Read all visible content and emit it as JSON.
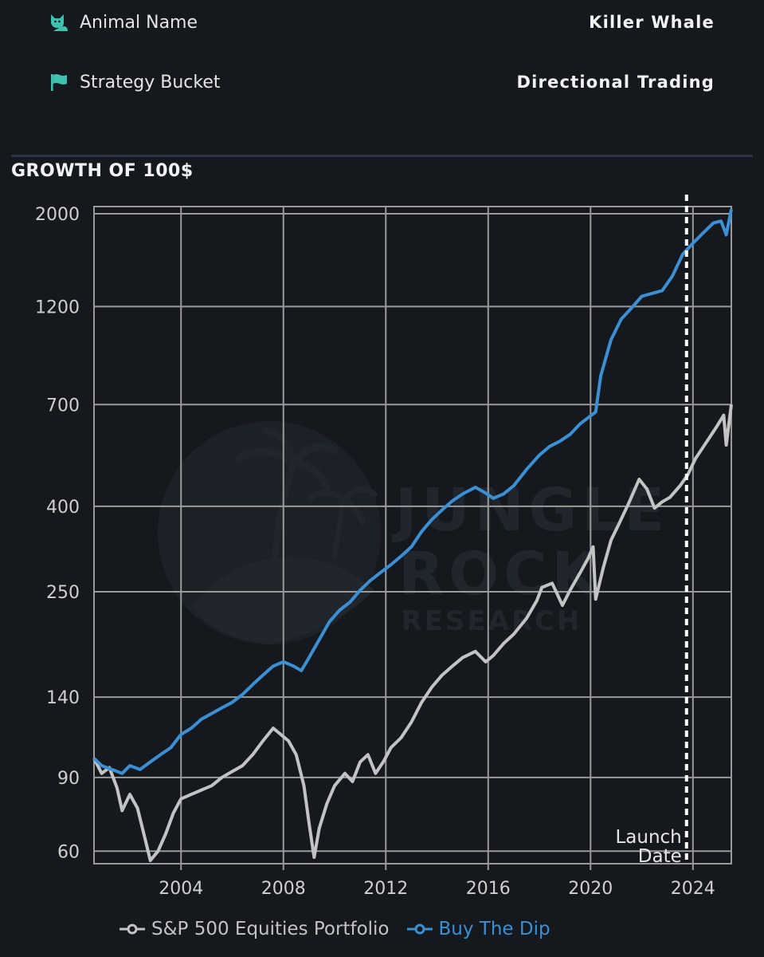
{
  "info": {
    "animal_label": "Animal Name",
    "animal_value": "Killer Whale",
    "bucket_label": "Strategy Bucket",
    "bucket_value": "Directional Trading",
    "icon_color": "#3fc1b0"
  },
  "chart_data": {
    "type": "line",
    "title": "GROWTH OF 100$",
    "xlabel": "",
    "ylabel": "",
    "y_scale": "log",
    "ylim": [
      56,
      2080
    ],
    "xlim": [
      2000.6,
      2025.5
    ],
    "y_ticks": [
      60,
      90,
      140,
      250,
      400,
      700,
      1200,
      2000
    ],
    "x_ticks": [
      2004,
      2008,
      2012,
      2016,
      2020,
      2024
    ],
    "grid": true,
    "annotation": {
      "text_line1": "Launch",
      "text_line2": "Date",
      "x": 2023.75
    },
    "watermark": {
      "line1": "JUNGLE",
      "line2": "ROCK",
      "line3": "RESEARCH"
    },
    "series": [
      {
        "name": "S&P 500 Equities Portfolio",
        "color": "#c3c3c3",
        "points": [
          [
            2000.6,
            100
          ],
          [
            2000.9,
            92
          ],
          [
            2001.2,
            95
          ],
          [
            2001.5,
            85
          ],
          [
            2001.7,
            75
          ],
          [
            2002.0,
            82
          ],
          [
            2002.3,
            76
          ],
          [
            2002.6,
            64
          ],
          [
            2002.8,
            57
          ],
          [
            2003.1,
            60
          ],
          [
            2003.4,
            66
          ],
          [
            2003.7,
            74
          ],
          [
            2004.0,
            80
          ],
          [
            2004.4,
            82
          ],
          [
            2004.8,
            84
          ],
          [
            2005.2,
            86
          ],
          [
            2005.6,
            90
          ],
          [
            2006.0,
            93
          ],
          [
            2006.4,
            96
          ],
          [
            2006.8,
            102
          ],
          [
            2007.2,
            110
          ],
          [
            2007.6,
            118
          ],
          [
            2007.9,
            114
          ],
          [
            2008.2,
            110
          ],
          [
            2008.5,
            102
          ],
          [
            2008.8,
            86
          ],
          [
            2009.0,
            70
          ],
          [
            2009.2,
            58
          ],
          [
            2009.4,
            68
          ],
          [
            2009.7,
            78
          ],
          [
            2010.0,
            86
          ],
          [
            2010.4,
            92
          ],
          [
            2010.7,
            88
          ],
          [
            2011.0,
            98
          ],
          [
            2011.3,
            102
          ],
          [
            2011.6,
            92
          ],
          [
            2011.9,
            98
          ],
          [
            2012.2,
            106
          ],
          [
            2012.6,
            112
          ],
          [
            2013.0,
            122
          ],
          [
            2013.4,
            136
          ],
          [
            2013.8,
            148
          ],
          [
            2014.2,
            158
          ],
          [
            2014.6,
            166
          ],
          [
            2015.0,
            174
          ],
          [
            2015.5,
            180
          ],
          [
            2015.9,
            170
          ],
          [
            2016.2,
            176
          ],
          [
            2016.6,
            188
          ],
          [
            2017.0,
            198
          ],
          [
            2017.5,
            216
          ],
          [
            2017.9,
            238
          ],
          [
            2018.1,
            256
          ],
          [
            2018.5,
            262
          ],
          [
            2018.9,
            232
          ],
          [
            2019.2,
            252
          ],
          [
            2019.6,
            278
          ],
          [
            2019.9,
            300
          ],
          [
            2020.1,
            320
          ],
          [
            2020.2,
            240
          ],
          [
            2020.5,
            286
          ],
          [
            2020.8,
            332
          ],
          [
            2021.1,
            362
          ],
          [
            2021.5,
            408
          ],
          [
            2021.9,
            464
          ],
          [
            2022.2,
            440
          ],
          [
            2022.5,
            396
          ],
          [
            2022.8,
            410
          ],
          [
            2023.1,
            420
          ],
          [
            2023.5,
            448
          ],
          [
            2023.8,
            476
          ],
          [
            2024.1,
            520
          ],
          [
            2024.5,
            566
          ],
          [
            2024.9,
            616
          ],
          [
            2025.2,
            660
          ],
          [
            2025.3,
            560
          ],
          [
            2025.5,
            700
          ]
        ]
      },
      {
        "name": "Buy The Dip",
        "color": "#3b8fd4",
        "points": [
          [
            2000.6,
            100
          ],
          [
            2000.9,
            96
          ],
          [
            2001.3,
            94
          ],
          [
            2001.7,
            92
          ],
          [
            2002.0,
            96
          ],
          [
            2002.4,
            94
          ],
          [
            2002.8,
            98
          ],
          [
            2003.2,
            102
          ],
          [
            2003.6,
            106
          ],
          [
            2004.0,
            114
          ],
          [
            2004.4,
            118
          ],
          [
            2004.8,
            124
          ],
          [
            2005.2,
            128
          ],
          [
            2005.6,
            132
          ],
          [
            2006.0,
            136
          ],
          [
            2006.4,
            142
          ],
          [
            2006.8,
            150
          ],
          [
            2007.2,
            158
          ],
          [
            2007.6,
            166
          ],
          [
            2008.0,
            170
          ],
          [
            2008.4,
            166
          ],
          [
            2008.7,
            162
          ],
          [
            2009.0,
            174
          ],
          [
            2009.4,
            192
          ],
          [
            2009.8,
            212
          ],
          [
            2010.2,
            226
          ],
          [
            2010.6,
            236
          ],
          [
            2011.0,
            252
          ],
          [
            2011.4,
            266
          ],
          [
            2011.8,
            278
          ],
          [
            2012.2,
            290
          ],
          [
            2012.6,
            304
          ],
          [
            2013.0,
            320
          ],
          [
            2013.4,
            348
          ],
          [
            2013.8,
            372
          ],
          [
            2014.2,
            392
          ],
          [
            2014.6,
            412
          ],
          [
            2015.0,
            428
          ],
          [
            2015.5,
            444
          ],
          [
            2015.9,
            430
          ],
          [
            2016.2,
            418
          ],
          [
            2016.6,
            428
          ],
          [
            2017.0,
            448
          ],
          [
            2017.5,
            490
          ],
          [
            2018.0,
            530
          ],
          [
            2018.4,
            556
          ],
          [
            2018.8,
            572
          ],
          [
            2019.2,
            594
          ],
          [
            2019.6,
            630
          ],
          [
            2020.0,
            658
          ],
          [
            2020.2,
            672
          ],
          [
            2020.4,
            820
          ],
          [
            2020.8,
            1000
          ],
          [
            2021.2,
            1120
          ],
          [
            2021.6,
            1190
          ],
          [
            2022.0,
            1270
          ],
          [
            2022.4,
            1290
          ],
          [
            2022.8,
            1310
          ],
          [
            2023.2,
            1420
          ],
          [
            2023.6,
            1600
          ],
          [
            2024.0,
            1700
          ],
          [
            2024.4,
            1800
          ],
          [
            2024.8,
            1900
          ],
          [
            2025.1,
            1920
          ],
          [
            2025.3,
            1780
          ],
          [
            2025.5,
            2050
          ]
        ]
      }
    ]
  }
}
